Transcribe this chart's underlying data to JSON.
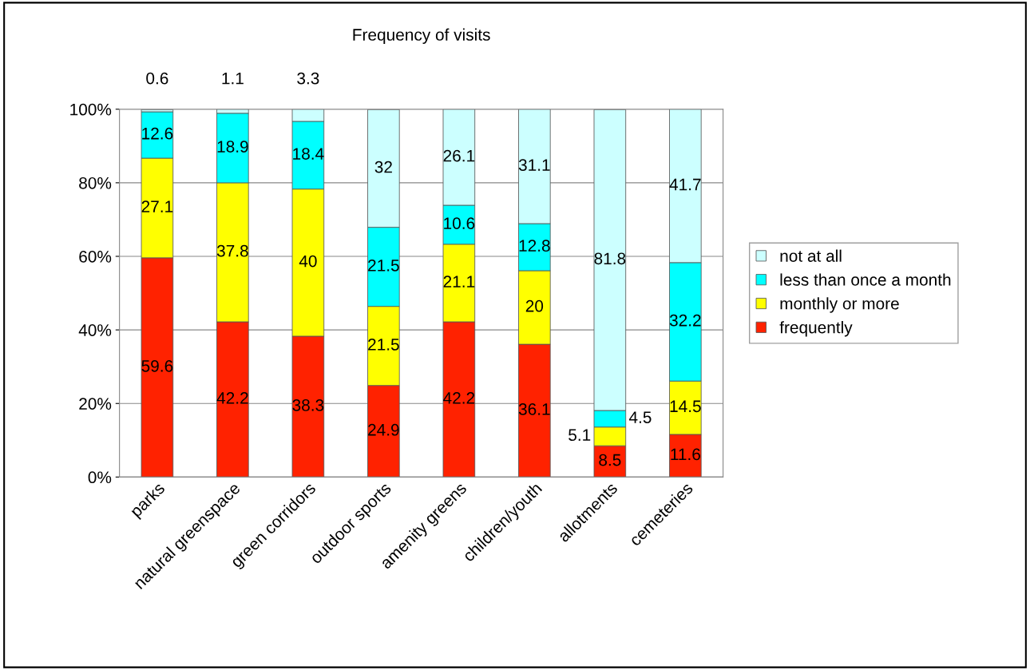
{
  "chart_data": {
    "type": "bar",
    "stacked": true,
    "title": "Frequency of visits",
    "categories": [
      "parks",
      "natural greenspace",
      "green corridors",
      "outdoor sports",
      "amenity greens",
      "children/youth",
      "allotments",
      "cemeteries"
    ],
    "series": [
      {
        "name": "frequently",
        "color": "#ff2200",
        "values": [
          59.6,
          42.2,
          38.3,
          24.9,
          42.2,
          36.1,
          8.5,
          11.6
        ]
      },
      {
        "name": "monthly or more",
        "color": "#ffff00",
        "values": [
          27.1,
          37.8,
          40,
          21.5,
          21.1,
          20,
          5.1,
          14.5
        ]
      },
      {
        "name": "less than once a month",
        "color": "#00ffff",
        "values": [
          12.6,
          18.9,
          18.4,
          21.5,
          10.6,
          12.8,
          4.5,
          32.2
        ]
      },
      {
        "name": "not at all",
        "color": "#ccffff",
        "values": [
          0.6,
          1.1,
          3.3,
          32,
          26.1,
          31.1,
          81.8,
          41.7
        ]
      }
    ],
    "ylim": [
      0,
      100
    ],
    "yticks": [
      {
        "value": 0,
        "label": "0%"
      },
      {
        "value": 20,
        "label": "20%"
      },
      {
        "value": 40,
        "label": "40%"
      },
      {
        "value": 60,
        "label": "60%"
      },
      {
        "value": 80,
        "label": "80%"
      },
      {
        "value": 100,
        "label": "100%"
      }
    ],
    "grid": "y",
    "legend": "right",
    "data_labels": true
  }
}
